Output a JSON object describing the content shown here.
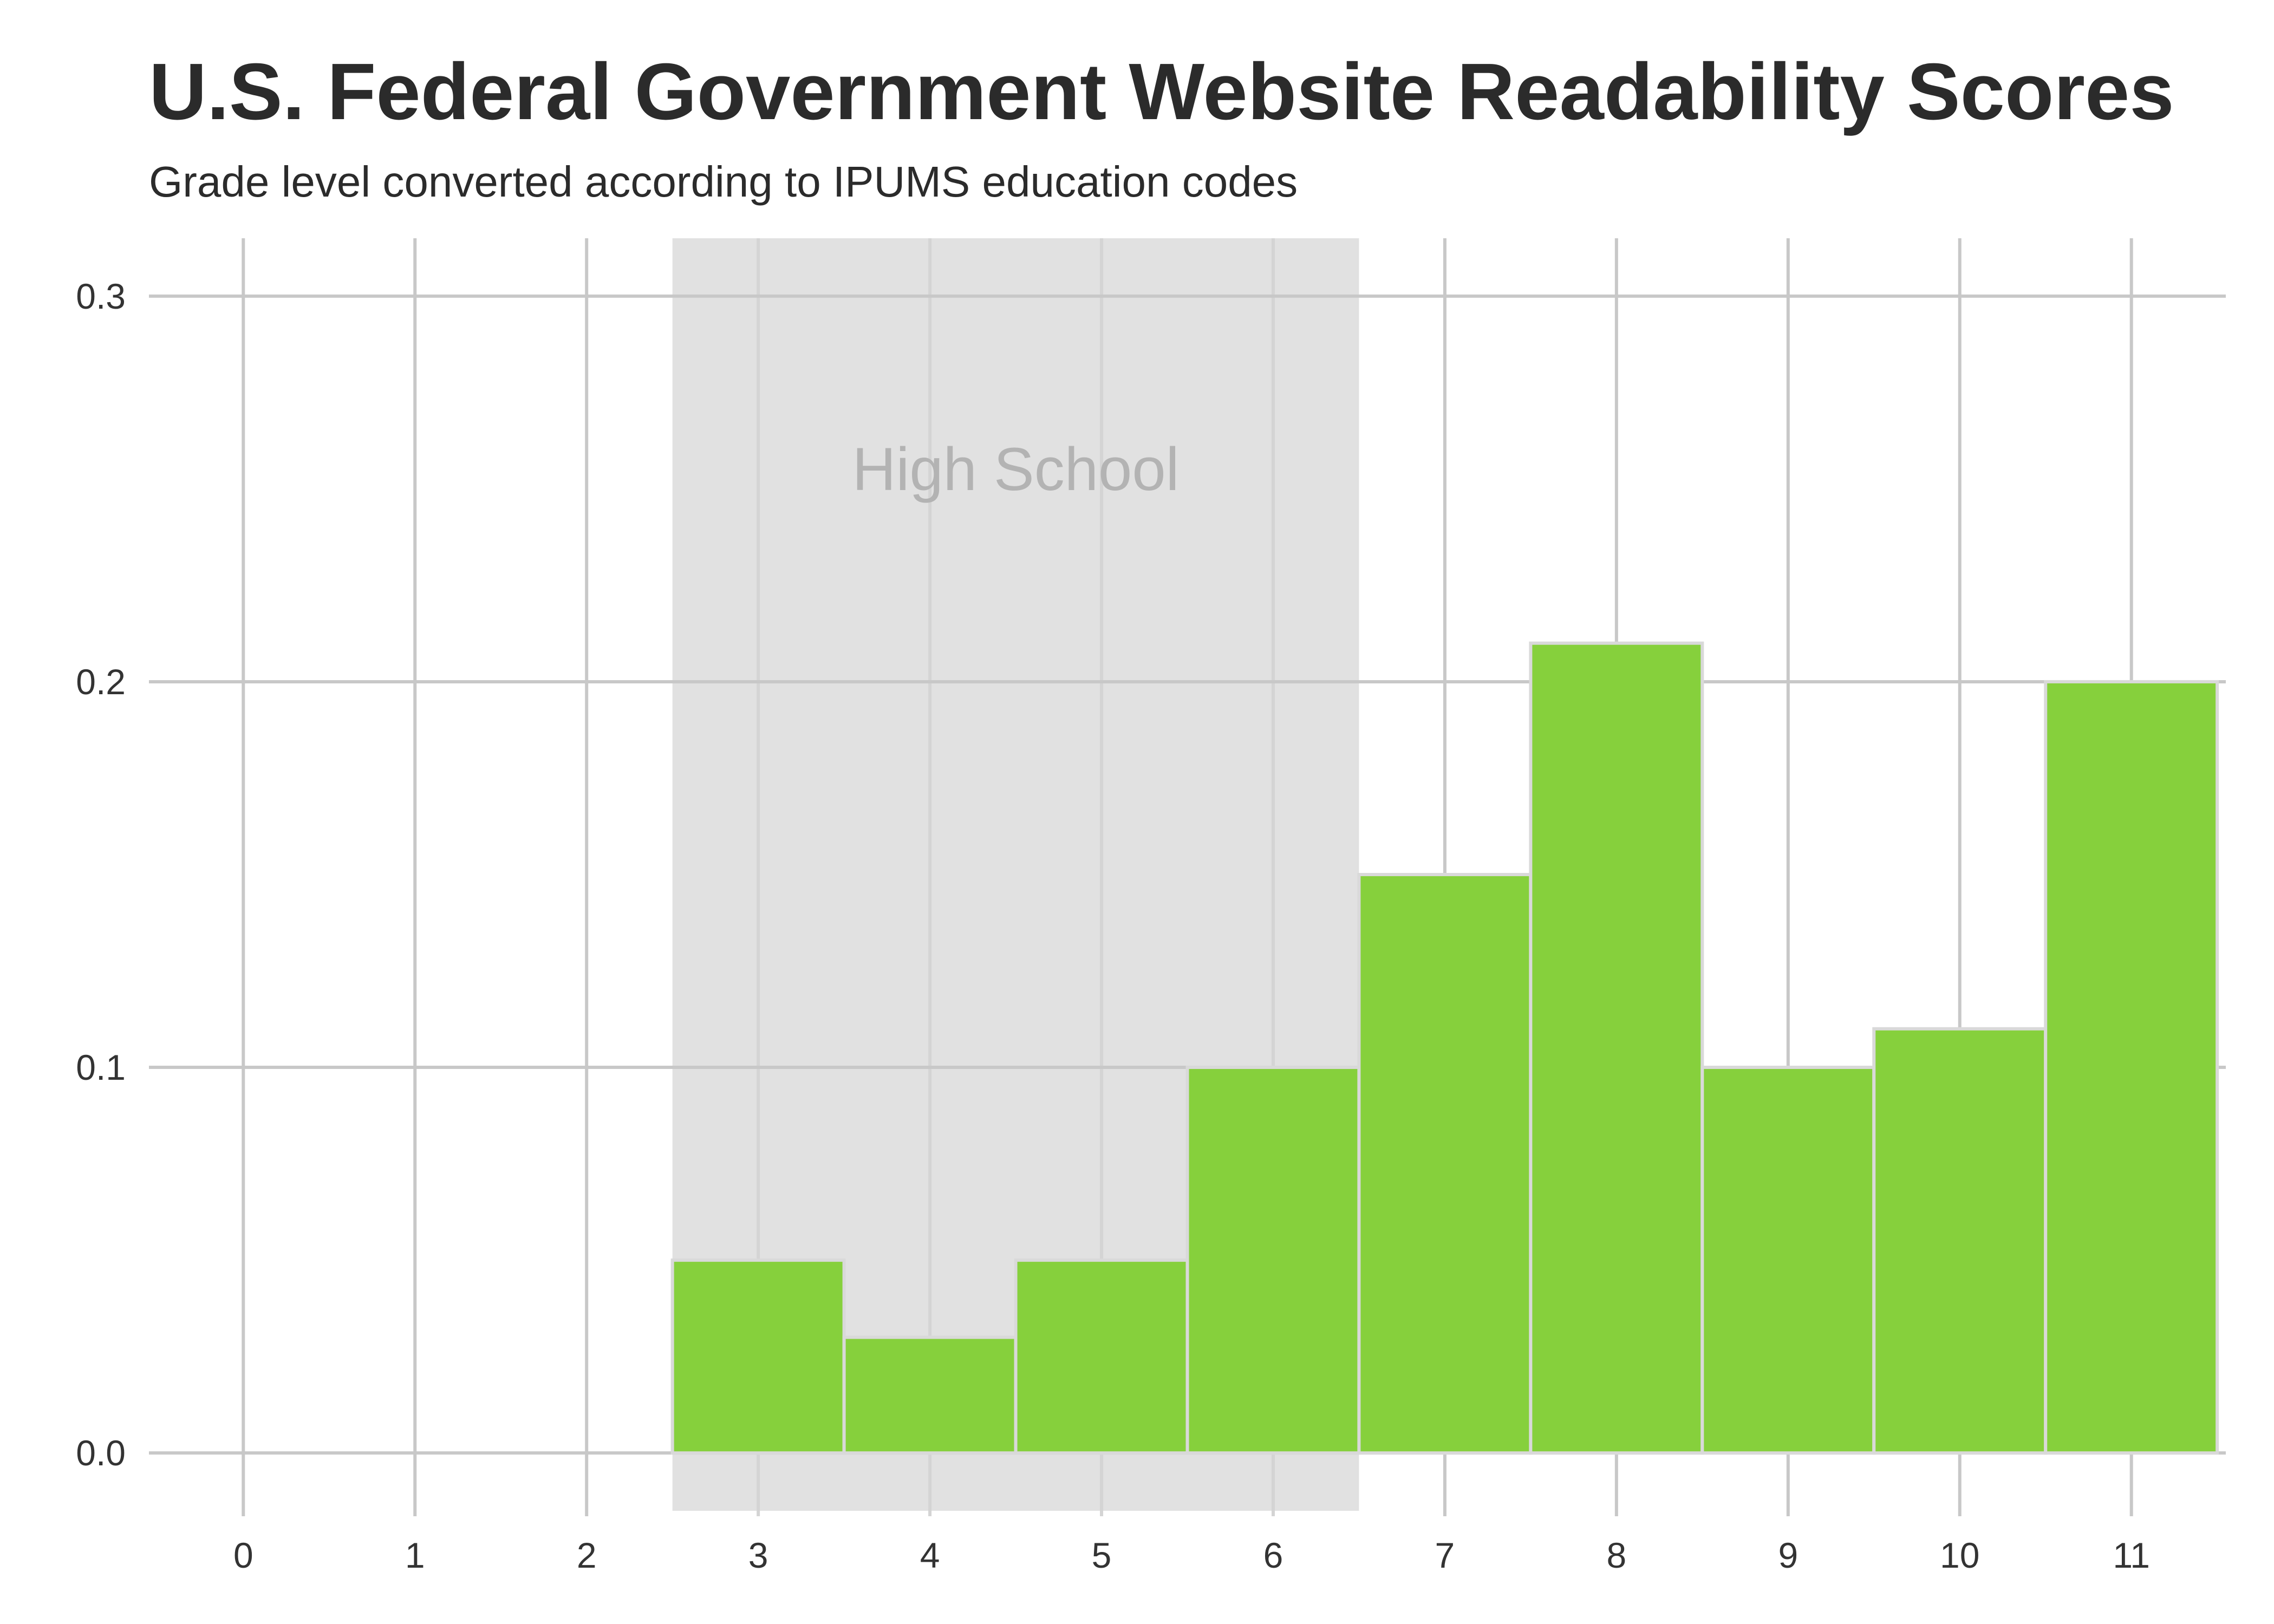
{
  "chart_data": {
    "type": "bar",
    "title": "U.S. Federal Government Website Readability Scores",
    "subtitle": "Grade level converted according to IPUMS education codes",
    "xlabel": "",
    "ylabel": "",
    "x_ticks": [
      0,
      1,
      2,
      3,
      4,
      5,
      6,
      7,
      8,
      9,
      10,
      11
    ],
    "y_ticks": [
      "0.0",
      "0.1",
      "0.2",
      "0.3"
    ],
    "categories": [
      3,
      4,
      5,
      6,
      7,
      8,
      9,
      10,
      11
    ],
    "values": [
      0.05,
      0.03,
      0.05,
      0.1,
      0.15,
      0.21,
      0.1,
      0.11,
      0.2
    ],
    "xlim": [
      -0.55,
      11.55
    ],
    "ylim": [
      -0.015,
      0.315
    ],
    "grid": true,
    "bar_color": "#86d03c",
    "bar_edge_color": "#d9d9d9",
    "grid_color": "#c8c8c8",
    "band": {
      "label": "High School",
      "x_range": [
        2.5,
        6.5
      ],
      "color": "#e1e1e1"
    }
  }
}
